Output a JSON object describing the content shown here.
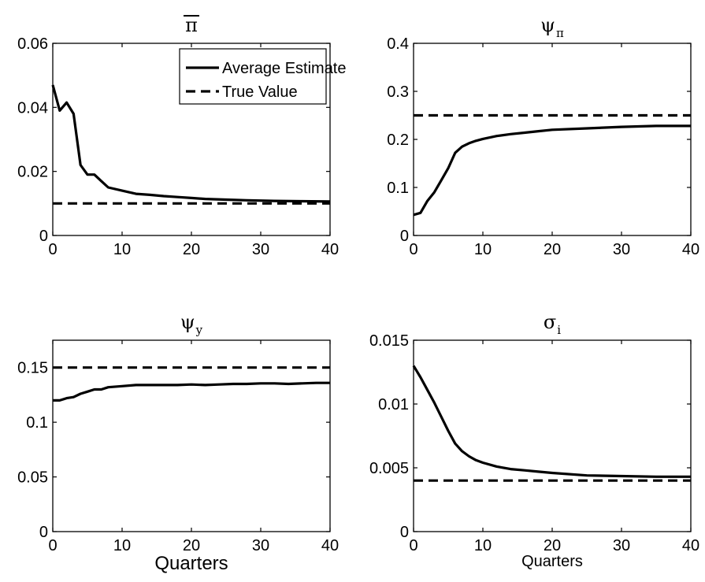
{
  "figure": {
    "colors": {
      "line": "#000000",
      "background": "#ffffff"
    }
  },
  "legend": {
    "entries": [
      {
        "label": "Average Estimate",
        "style": "solid"
      },
      {
        "label": "True Value",
        "style": "dashed"
      }
    ],
    "placement": "top-right of first panel"
  },
  "chart_data": [
    {
      "type": "line",
      "title": {
        "symbol": "π",
        "overline": true,
        "subscript": ""
      },
      "xlabel": "",
      "ylabel": "",
      "xlim": [
        0,
        40
      ],
      "ylim": [
        0,
        0.06
      ],
      "xticks": [
        0,
        10,
        20,
        30,
        40
      ],
      "xtick_labels": [
        "0",
        "10",
        "20",
        "30",
        "40"
      ],
      "yticks": [
        0,
        0.02,
        0.04,
        0.06
      ],
      "ytick_labels": [
        "0",
        "0.02",
        "0.04",
        "0.06"
      ],
      "grid": false,
      "series": [
        {
          "name": "Average Estimate",
          "style": "solid",
          "x": [
            0,
            1,
            2,
            3,
            4,
            5,
            6,
            7,
            8,
            10,
            12,
            14,
            16,
            18,
            20,
            22,
            25,
            28,
            32,
            36,
            40
          ],
          "y": [
            0.047,
            0.039,
            0.0415,
            0.038,
            0.022,
            0.019,
            0.019,
            0.017,
            0.015,
            0.014,
            0.013,
            0.0127,
            0.0123,
            0.012,
            0.0117,
            0.0114,
            0.0112,
            0.011,
            0.0108,
            0.0107,
            0.0106
          ]
        },
        {
          "name": "True Value",
          "style": "dashed",
          "x": [
            0,
            40
          ],
          "y": [
            0.01,
            0.01
          ]
        }
      ]
    },
    {
      "type": "line",
      "title": {
        "symbol": "ψ",
        "overline": false,
        "subscript": "π"
      },
      "xlabel": "",
      "ylabel": "",
      "xlim": [
        0,
        40
      ],
      "ylim": [
        0,
        0.4
      ],
      "xticks": [
        0,
        10,
        20,
        30,
        40
      ],
      "xtick_labels": [
        "0",
        "10",
        "20",
        "30",
        "40"
      ],
      "yticks": [
        0,
        0.1,
        0.2,
        0.3,
        0.4
      ],
      "ytick_labels": [
        "0",
        "0.1",
        "0.2",
        "0.3",
        "0.4"
      ],
      "grid": false,
      "series": [
        {
          "name": "Average Estimate",
          "style": "solid",
          "x": [
            0,
            1,
            2,
            3,
            4,
            5,
            6,
            7,
            8,
            9,
            10,
            12,
            14,
            16,
            18,
            20,
            25,
            30,
            35,
            40
          ],
          "y": [
            0.043,
            0.047,
            0.072,
            0.09,
            0.115,
            0.14,
            0.172,
            0.185,
            0.192,
            0.197,
            0.201,
            0.207,
            0.211,
            0.214,
            0.217,
            0.22,
            0.223,
            0.226,
            0.228,
            0.228
          ]
        },
        {
          "name": "True Value",
          "style": "dashed",
          "x": [
            0,
            40
          ],
          "y": [
            0.25,
            0.25
          ]
        }
      ]
    },
    {
      "type": "line",
      "title": {
        "symbol": "ψ",
        "overline": false,
        "subscript": "y"
      },
      "xlabel": "Quarters",
      "ylabel": "",
      "xlim": [
        0,
        40
      ],
      "ylim": [
        0,
        0.175
      ],
      "xticks": [
        0,
        10,
        20,
        30,
        40
      ],
      "xtick_labels": [
        "0",
        "10",
        "20",
        "30",
        "40"
      ],
      "yticks": [
        0,
        0.05,
        0.1,
        0.15
      ],
      "ytick_labels": [
        "0",
        "0.05",
        "0.1",
        "0.15"
      ],
      "grid": false,
      "series": [
        {
          "name": "Average Estimate",
          "style": "solid",
          "x": [
            0,
            1,
            2,
            3,
            4,
            5,
            6,
            7,
            8,
            10,
            12,
            14,
            16,
            18,
            20,
            22,
            24,
            26,
            28,
            30,
            32,
            34,
            36,
            38,
            40
          ],
          "y": [
            0.12,
            0.12,
            0.122,
            0.123,
            0.126,
            0.128,
            0.13,
            0.13,
            0.132,
            0.133,
            0.134,
            0.134,
            0.134,
            0.134,
            0.1345,
            0.134,
            0.1345,
            0.135,
            0.135,
            0.1355,
            0.1355,
            0.135,
            0.1355,
            0.136,
            0.136
          ]
        },
        {
          "name": "True Value",
          "style": "dashed",
          "x": [
            0,
            40
          ],
          "y": [
            0.15,
            0.15
          ]
        }
      ]
    },
    {
      "type": "line",
      "title": {
        "symbol": "σ",
        "overline": false,
        "subscript": "i"
      },
      "xlabel": "Quarters",
      "ylabel": "",
      "xlim": [
        0,
        40
      ],
      "ylim": [
        0,
        0.015
      ],
      "xticks": [
        0,
        10,
        20,
        30,
        40
      ],
      "xtick_labels": [
        "0",
        "10",
        "20",
        "30",
        "40"
      ],
      "yticks": [
        0,
        0.005,
        0.01,
        0.015
      ],
      "ytick_labels": [
        "0",
        "0.005",
        "0.01",
        "0.015"
      ],
      "grid": false,
      "series": [
        {
          "name": "Average Estimate",
          "style": "solid",
          "x": [
            0,
            1,
            2,
            3,
            4,
            5,
            6,
            7,
            8,
            9,
            10,
            12,
            14,
            16,
            18,
            20,
            25,
            30,
            35,
            40
          ],
          "y": [
            0.013,
            0.0121,
            0.0111,
            0.0101,
            0.009,
            0.0079,
            0.0069,
            0.0063,
            0.0059,
            0.0056,
            0.0054,
            0.0051,
            0.0049,
            0.0048,
            0.0047,
            0.0046,
            0.0044,
            0.00435,
            0.0043,
            0.0043
          ]
        },
        {
          "name": "True Value",
          "style": "dashed",
          "x": [
            0,
            40
          ],
          "y": [
            0.004,
            0.004
          ]
        }
      ]
    }
  ]
}
